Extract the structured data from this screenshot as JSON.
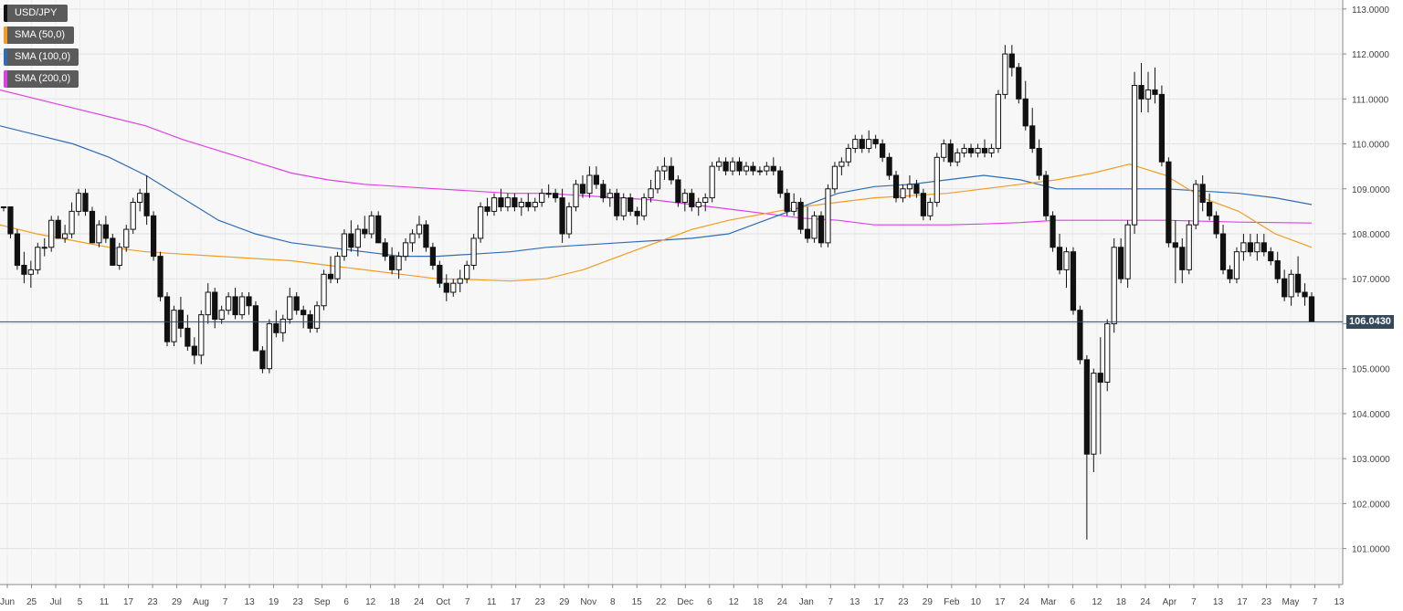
{
  "chart_data": {
    "type": "candlestick",
    "symbol": "USD/JPY",
    "legend": [
      {
        "label": "USD/JPY",
        "color": "#111111"
      },
      {
        "label": "SMA (50,0)",
        "color": "#f39c1f"
      },
      {
        "label": "SMA (100,0)",
        "color": "#2e6db4"
      },
      {
        "label": "SMA (200,0)",
        "color": "#e040e8"
      }
    ],
    "last_price": "106.0430",
    "last_price_value": 106.043,
    "ylim": [
      100.2,
      113.2
    ],
    "y_ticks": [
      "113.0000",
      "112.0000",
      "111.0000",
      "110.0000",
      "109.0000",
      "108.0000",
      "107.0000",
      "106.0000",
      "105.0000",
      "104.0000",
      "103.0000",
      "102.0000",
      "101.0000"
    ],
    "y_tick_values": [
      113,
      112,
      111,
      110,
      109,
      108,
      107,
      106,
      105,
      104,
      103,
      102,
      101
    ],
    "x_tick_labels": [
      "Jun",
      "25",
      "Jul",
      "5",
      "11",
      "17",
      "23",
      "29",
      "Aug",
      "7",
      "13",
      "19",
      "23",
      "Sep",
      "6",
      "12",
      "18",
      "24",
      "Oct",
      "7",
      "11",
      "17",
      "23",
      "29",
      "Nov",
      "8",
      "15",
      "22",
      "Dec",
      "6",
      "12",
      "18",
      "24",
      "Jan",
      "7",
      "13",
      "17",
      "23",
      "29",
      "Feb",
      "10",
      "17",
      "24",
      "Mar",
      "6",
      "12",
      "18",
      "24",
      "Apr",
      "7",
      "13",
      "17",
      "23",
      "May",
      "7",
      "13"
    ],
    "candles": [
      [
        108.6,
        108.6,
        108.5,
        108.6
      ],
      [
        108.6,
        108.6,
        107.9,
        108.0
      ],
      [
        108.0,
        108.1,
        107.2,
        107.3
      ],
      [
        107.3,
        107.6,
        106.9,
        107.1
      ],
      [
        107.1,
        107.4,
        106.8,
        107.2
      ],
      [
        107.2,
        107.8,
        107.1,
        107.7
      ],
      [
        107.7,
        107.9,
        107.5,
        107.7
      ],
      [
        107.7,
        108.4,
        107.6,
        108.3
      ],
      [
        108.3,
        108.4,
        107.9,
        107.9
      ],
      [
        107.9,
        108.2,
        107.8,
        108.0
      ],
      [
        108.0,
        108.7,
        107.9,
        108.5
      ],
      [
        108.5,
        109.0,
        108.4,
        108.9
      ],
      [
        108.9,
        109.0,
        108.4,
        108.5
      ],
      [
        108.5,
        108.6,
        107.8,
        107.8
      ],
      [
        107.8,
        108.3,
        107.7,
        108.2
      ],
      [
        108.2,
        108.4,
        107.8,
        107.9
      ],
      [
        107.9,
        108.0,
        107.3,
        107.3
      ],
      [
        107.3,
        107.8,
        107.2,
        107.7
      ],
      [
        107.7,
        108.2,
        107.6,
        108.1
      ],
      [
        108.1,
        108.8,
        108.0,
        108.7
      ],
      [
        108.7,
        109.0,
        108.5,
        108.9
      ],
      [
        108.9,
        109.3,
        108.2,
        108.4
      ],
      [
        108.4,
        108.5,
        107.4,
        107.5
      ],
      [
        107.5,
        107.6,
        106.5,
        106.6
      ],
      [
        106.6,
        106.7,
        105.5,
        105.6
      ],
      [
        105.6,
        106.4,
        105.5,
        106.3
      ],
      [
        106.3,
        106.6,
        105.7,
        105.9
      ],
      [
        105.9,
        106.2,
        105.4,
        105.5
      ],
      [
        105.5,
        105.7,
        105.1,
        105.3
      ],
      [
        105.3,
        106.3,
        105.1,
        106.2
      ],
      [
        106.2,
        106.9,
        106.0,
        106.7
      ],
      [
        106.7,
        106.8,
        105.9,
        106.1
      ],
      [
        106.1,
        106.4,
        106.0,
        106.3
      ],
      [
        106.3,
        106.7,
        106.2,
        106.6
      ],
      [
        106.6,
        106.8,
        106.1,
        106.2
      ],
      [
        106.2,
        106.7,
        106.1,
        106.6
      ],
      [
        106.6,
        106.7,
        106.2,
        106.4
      ],
      [
        106.4,
        106.5,
        105.4,
        105.4
      ],
      [
        105.4,
        105.5,
        104.9,
        105.0
      ],
      [
        105.0,
        106.1,
        104.9,
        106.0
      ],
      [
        106.0,
        106.3,
        105.7,
        105.8
      ],
      [
        105.8,
        106.2,
        105.6,
        106.1
      ],
      [
        106.1,
        106.8,
        106.0,
        106.6
      ],
      [
        106.6,
        106.7,
        106.2,
        106.3
      ],
      [
        106.3,
        106.4,
        105.9,
        106.2
      ],
      [
        106.2,
        106.3,
        105.8,
        105.9
      ],
      [
        105.9,
        106.5,
        105.8,
        106.4
      ],
      [
        106.4,
        107.2,
        106.3,
        107.1
      ],
      [
        107.1,
        107.5,
        106.9,
        107.0
      ],
      [
        107.0,
        107.6,
        106.9,
        107.5
      ],
      [
        107.5,
        108.1,
        107.4,
        108.0
      ],
      [
        108.0,
        108.3,
        107.6,
        107.7
      ],
      [
        107.7,
        108.2,
        107.5,
        108.1
      ],
      [
        108.1,
        108.4,
        107.9,
        108.0
      ],
      [
        108.0,
        108.5,
        107.9,
        108.4
      ],
      [
        108.4,
        108.5,
        107.8,
        107.8
      ],
      [
        107.8,
        107.9,
        107.4,
        107.5
      ],
      [
        107.5,
        107.7,
        107.1,
        107.2
      ],
      [
        107.2,
        107.6,
        107.0,
        107.5
      ],
      [
        107.5,
        107.9,
        107.4,
        107.8
      ],
      [
        107.8,
        108.1,
        107.6,
        108.0
      ],
      [
        108.0,
        108.4,
        107.9,
        108.2
      ],
      [
        108.2,
        108.3,
        107.6,
        107.7
      ],
      [
        107.7,
        107.8,
        107.2,
        107.3
      ],
      [
        107.3,
        107.4,
        106.8,
        106.9
      ],
      [
        106.9,
        107.1,
        106.5,
        106.7
      ],
      [
        106.7,
        107.0,
        106.6,
        106.9
      ],
      [
        106.9,
        107.2,
        106.7,
        107.0
      ],
      [
        107.0,
        107.4,
        106.9,
        107.3
      ],
      [
        107.3,
        108.0,
        107.2,
        107.9
      ],
      [
        107.9,
        108.7,
        107.8,
        108.6
      ],
      [
        108.6,
        108.8,
        108.4,
        108.5
      ],
      [
        108.5,
        108.9,
        108.4,
        108.8
      ],
      [
        108.8,
        109.0,
        108.5,
        108.6
      ],
      [
        108.6,
        108.9,
        108.5,
        108.8
      ],
      [
        108.8,
        108.9,
        108.5,
        108.6
      ],
      [
        108.6,
        108.8,
        108.4,
        108.7
      ],
      [
        108.7,
        108.9,
        108.5,
        108.6
      ],
      [
        108.6,
        108.8,
        108.5,
        108.7
      ],
      [
        108.7,
        109.0,
        108.6,
        108.9
      ],
      [
        108.9,
        109.1,
        108.8,
        108.9
      ],
      [
        108.9,
        109.0,
        108.7,
        108.8
      ],
      [
        108.8,
        109.0,
        107.8,
        108.0
      ],
      [
        108.0,
        108.7,
        107.9,
        108.6
      ],
      [
        108.6,
        109.2,
        108.5,
        109.1
      ],
      [
        109.1,
        109.3,
        108.8,
        108.9
      ],
      [
        108.9,
        109.5,
        108.8,
        109.3
      ],
      [
        109.3,
        109.5,
        109.0,
        109.1
      ],
      [
        109.1,
        109.2,
        108.7,
        108.8
      ],
      [
        108.8,
        109.0,
        108.6,
        108.9
      ],
      [
        108.9,
        109.0,
        108.3,
        108.4
      ],
      [
        108.4,
        108.9,
        108.3,
        108.8
      ],
      [
        108.8,
        108.9,
        108.4,
        108.5
      ],
      [
        108.5,
        108.6,
        108.2,
        108.4
      ],
      [
        108.4,
        108.9,
        108.3,
        108.8
      ],
      [
        108.8,
        109.2,
        108.7,
        109.0
      ],
      [
        109.0,
        109.5,
        108.9,
        109.4
      ],
      [
        109.4,
        109.7,
        109.2,
        109.5
      ],
      [
        109.5,
        109.7,
        109.1,
        109.2
      ],
      [
        109.2,
        109.3,
        108.6,
        108.7
      ],
      [
        108.7,
        109.0,
        108.5,
        108.9
      ],
      [
        108.9,
        109.0,
        108.5,
        108.6
      ],
      [
        108.6,
        108.8,
        108.4,
        108.7
      ],
      [
        108.7,
        108.9,
        108.5,
        108.8
      ],
      [
        108.8,
        109.6,
        108.7,
        109.5
      ],
      [
        109.5,
        109.7,
        109.4,
        109.6
      ],
      [
        109.6,
        109.7,
        109.3,
        109.4
      ],
      [
        109.4,
        109.7,
        109.3,
        109.6
      ],
      [
        109.6,
        109.7,
        109.3,
        109.4
      ],
      [
        109.4,
        109.6,
        109.3,
        109.5
      ],
      [
        109.5,
        109.6,
        109.3,
        109.4
      ],
      [
        109.4,
        109.5,
        109.3,
        109.4
      ],
      [
        109.4,
        109.6,
        109.3,
        109.5
      ],
      [
        109.5,
        109.7,
        109.3,
        109.4
      ],
      [
        109.4,
        109.5,
        108.8,
        108.9
      ],
      [
        108.9,
        109.0,
        108.4,
        108.5
      ],
      [
        108.5,
        108.9,
        108.4,
        108.7
      ],
      [
        108.7,
        108.8,
        108.0,
        108.1
      ],
      [
        108.1,
        108.6,
        107.8,
        107.9
      ],
      [
        107.9,
        108.5,
        107.8,
        108.4
      ],
      [
        108.4,
        108.5,
        107.7,
        107.8
      ],
      [
        107.8,
        109.1,
        107.7,
        109.0
      ],
      [
        109.0,
        109.6,
        108.9,
        109.5
      ],
      [
        109.5,
        109.7,
        109.3,
        109.6
      ],
      [
        109.6,
        110.0,
        109.5,
        109.9
      ],
      [
        109.9,
        110.2,
        109.8,
        110.1
      ],
      [
        110.1,
        110.2,
        109.8,
        109.9
      ],
      [
        109.9,
        110.3,
        109.8,
        110.1
      ],
      [
        110.1,
        110.2,
        109.9,
        110.0
      ],
      [
        110.0,
        110.1,
        109.6,
        109.7
      ],
      [
        109.7,
        109.8,
        109.2,
        109.3
      ],
      [
        109.3,
        109.4,
        108.7,
        108.8
      ],
      [
        108.8,
        109.1,
        108.7,
        109.0
      ],
      [
        109.0,
        109.3,
        108.8,
        109.1
      ],
      [
        109.1,
        109.2,
        108.8,
        108.9
      ],
      [
        108.9,
        109.0,
        108.3,
        108.4
      ],
      [
        108.4,
        108.8,
        108.3,
        108.7
      ],
      [
        108.7,
        109.8,
        108.6,
        109.7
      ],
      [
        109.7,
        110.1,
        109.6,
        110.0
      ],
      [
        110.0,
        110.1,
        109.5,
        109.6
      ],
      [
        109.6,
        109.9,
        109.5,
        109.8
      ],
      [
        109.8,
        110.0,
        109.7,
        109.9
      ],
      [
        109.9,
        110.0,
        109.7,
        109.8
      ],
      [
        109.8,
        110.0,
        109.7,
        109.9
      ],
      [
        109.9,
        110.1,
        109.7,
        109.8
      ],
      [
        109.8,
        110.0,
        109.7,
        109.9
      ],
      [
        109.9,
        111.2,
        109.8,
        111.1
      ],
      [
        111.1,
        112.2,
        111.0,
        112.0
      ],
      [
        112.0,
        112.2,
        111.5,
        111.7
      ],
      [
        111.7,
        111.8,
        110.9,
        111.0
      ],
      [
        111.0,
        111.4,
        110.3,
        110.4
      ],
      [
        110.4,
        110.8,
        109.8,
        109.9
      ],
      [
        109.9,
        110.1,
        109.2,
        109.3
      ],
      [
        109.3,
        109.4,
        108.3,
        108.4
      ],
      [
        108.4,
        108.5,
        107.6,
        107.7
      ],
      [
        107.7,
        108.0,
        107.1,
        107.2
      ],
      [
        107.2,
        107.7,
        106.8,
        107.6
      ],
      [
        107.6,
        107.7,
        106.2,
        106.3
      ],
      [
        106.3,
        106.4,
        105.1,
        105.2
      ],
      [
        105.2,
        105.3,
        101.2,
        103.1
      ],
      [
        103.1,
        105.0,
        102.7,
        104.9
      ],
      [
        104.9,
        105.7,
        103.1,
        104.7
      ],
      [
        104.7,
        106.1,
        104.5,
        106.0
      ],
      [
        106.0,
        107.9,
        105.8,
        107.7
      ],
      [
        107.7,
        107.9,
        106.9,
        107.0
      ],
      [
        107.0,
        108.3,
        106.8,
        108.2
      ],
      [
        108.2,
        111.6,
        108.0,
        111.3
      ],
      [
        111.3,
        111.8,
        110.7,
        111.0
      ],
      [
        111.0,
        111.6,
        110.7,
        111.2
      ],
      [
        111.2,
        111.7,
        110.9,
        111.1
      ],
      [
        111.1,
        111.3,
        109.5,
        109.6
      ],
      [
        109.6,
        109.7,
        107.7,
        107.8
      ],
      [
        107.8,
        108.3,
        106.9,
        107.7
      ],
      [
        107.7,
        107.9,
        106.9,
        107.2
      ],
      [
        107.2,
        108.3,
        107.1,
        108.2
      ],
      [
        108.2,
        109.2,
        108.1,
        109.1
      ],
      [
        109.1,
        109.3,
        108.5,
        108.7
      ],
      [
        108.7,
        108.9,
        108.3,
        108.4
      ],
      [
        108.4,
        108.5,
        107.9,
        108.0
      ],
      [
        108.0,
        108.2,
        107.1,
        107.2
      ],
      [
        107.2,
        107.3,
        106.9,
        107.0
      ],
      [
        107.0,
        107.7,
        106.9,
        107.6
      ],
      [
        107.6,
        108.0,
        107.4,
        107.8
      ],
      [
        107.8,
        108.0,
        107.5,
        107.6
      ],
      [
        107.6,
        108.0,
        107.4,
        107.8
      ],
      [
        107.8,
        108.0,
        107.5,
        107.6
      ],
      [
        107.6,
        107.7,
        107.3,
        107.4
      ],
      [
        107.4,
        107.6,
        106.9,
        107.0
      ],
      [
        107.0,
        107.2,
        106.5,
        106.6
      ],
      [
        106.6,
        107.2,
        106.4,
        107.1
      ],
      [
        107.1,
        107.5,
        106.6,
        106.7
      ],
      [
        106.7,
        106.9,
        106.4,
        106.6
      ],
      [
        106.6,
        106.7,
        106.04,
        106.04
      ]
    ],
    "sma50": [
      108.2,
      108.0,
      107.85,
      107.7,
      107.6,
      107.55,
      107.5,
      107.45,
      107.4,
      107.3,
      107.2,
      107.1,
      107.0,
      106.98,
      106.95,
      107.0,
      107.2,
      107.5,
      107.8,
      108.1,
      108.3,
      108.45,
      108.6,
      108.7,
      108.8,
      108.85,
      108.9,
      109.0,
      109.1,
      109.2,
      109.35,
      109.55,
      109.3,
      108.8,
      108.5,
      108.0,
      107.7
    ],
    "sma100": [
      110.4,
      110.2,
      110.0,
      109.7,
      109.3,
      108.8,
      108.3,
      108.0,
      107.8,
      107.7,
      107.6,
      107.5,
      107.5,
      107.55,
      107.6,
      107.7,
      107.75,
      107.8,
      107.85,
      107.9,
      108.0,
      108.3,
      108.6,
      108.9,
      109.05,
      109.1,
      109.2,
      109.3,
      109.2,
      109.0,
      109.0,
      109.0,
      109.0,
      108.95,
      108.9,
      108.8,
      108.65
    ],
    "sma200": [
      111.2,
      111.0,
      110.8,
      110.6,
      110.4,
      110.1,
      109.85,
      109.6,
      109.35,
      109.2,
      109.1,
      109.05,
      109.0,
      108.95,
      108.9,
      108.9,
      108.85,
      108.8,
      108.75,
      108.65,
      108.55,
      108.45,
      108.35,
      108.3,
      108.2,
      108.2,
      108.2,
      108.22,
      108.25,
      108.3,
      108.3,
      108.3,
      108.3,
      108.28,
      108.26,
      108.25,
      108.24
    ]
  }
}
